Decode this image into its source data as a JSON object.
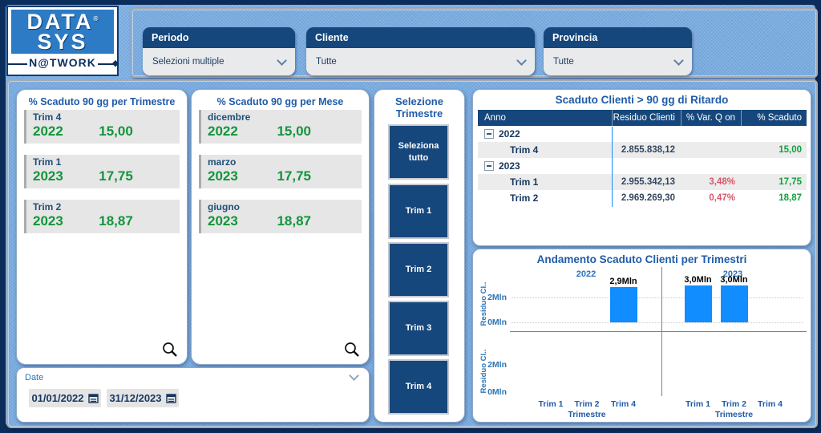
{
  "logo": {
    "top": "DATA",
    "registered": "®",
    "mid": "SYS",
    "bottom": "N@TWORK"
  },
  "filter_bar": {
    "filters": [
      {
        "label": "Periodo",
        "value": "Selezioni multiple"
      },
      {
        "label": "Cliente",
        "value": "Tutte"
      },
      {
        "label": "Provincia",
        "value": "Tutte"
      }
    ]
  },
  "kpi_cards": [
    {
      "title": "% Scaduto 90 gg per Trimestre",
      "items": [
        {
          "label": "Trim 4",
          "year": "2022",
          "value": "15,00"
        },
        {
          "label": "Trim 1",
          "year": "2023",
          "value": "17,75"
        },
        {
          "label": "Trim 2",
          "year": "2023",
          "value": "18,87"
        }
      ]
    },
    {
      "title": "% Scaduto 90 gg per Mese",
      "items": [
        {
          "label": "dicembre",
          "year": "2022",
          "value": "15,00"
        },
        {
          "label": "marzo",
          "year": "2023",
          "value": "17,75"
        },
        {
          "label": "giugno",
          "year": "2023",
          "value": "18,87"
        }
      ]
    }
  ],
  "date_slicer": {
    "label": "Date",
    "start": "01/01/2022",
    "end": "31/12/2023"
  },
  "quarter_slicer": {
    "title_line1": "Selezione",
    "title_line2": "Trimestre",
    "buttons": [
      "Seleziona tutto",
      "Trim 1",
      "Trim 2",
      "Trim 3",
      "Trim 4"
    ]
  },
  "table": {
    "title": "Scaduto Clienti > 90 gg di Ritardo",
    "columns": [
      "Anno",
      "Residuo Clienti",
      "% Var. Q on Q",
      "% Scaduto"
    ],
    "rows": [
      {
        "type": "group",
        "label": "2022",
        "residuo": "",
        "var": "",
        "scaduto": "",
        "shaded": false
      },
      {
        "type": "detail",
        "label": "Trim 4",
        "residuo": "2.855.838,12",
        "var": "",
        "scaduto": "15,00",
        "shaded": true
      },
      {
        "type": "group",
        "label": "2023",
        "residuo": "",
        "var": "",
        "scaduto": "",
        "shaded": false
      },
      {
        "type": "detail",
        "label": "Trim 1",
        "residuo": "2.955.342,13",
        "var": "3,48%",
        "scaduto": "17,75",
        "shaded": true
      },
      {
        "type": "detail",
        "label": "Trim 2",
        "residuo": "2.969.269,30",
        "var": "0,47%",
        "scaduto": "18,87",
        "shaded": false
      }
    ]
  },
  "chart_data": {
    "type": "bar",
    "title": "Andamento Scaduto Clienti per Trimestri",
    "facets": [
      "2022",
      "2023"
    ],
    "categories": [
      "Trim 1",
      "Trim 2",
      "Trim 4"
    ],
    "series": [
      {
        "name": "2022",
        "values_mln": [
          null,
          null,
          2.855838
        ],
        "labels": [
          "",
          "",
          "2,9Mln"
        ]
      },
      {
        "name": "2023",
        "values_mln": [
          2.955342,
          2.969269,
          null
        ],
        "labels": [
          "3,0Mln",
          "3,0Mln",
          ""
        ]
      }
    ],
    "xlabel": "Trimestre",
    "ylabel": "Residuo Cl..",
    "yticks": [
      "2Mln",
      "0Mln"
    ],
    "ylim_mln": [
      0,
      3.3
    ],
    "grid": "dotted",
    "legend": "none",
    "bar_color": "#118DFF",
    "small_multiple_rows": 2,
    "second_row_has_data": false
  },
  "colors": {
    "header_navy": "#16477C",
    "title_blue": "#1F5BA9",
    "positive_green": "#12953B",
    "negative_red": "#D9566B",
    "bar_blue": "#118DFF",
    "background_blue": "#7FB0E4",
    "row_shade": "#ECECEC"
  }
}
